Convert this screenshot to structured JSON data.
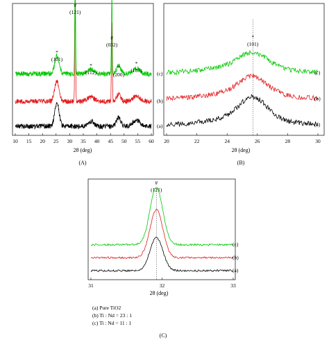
{
  "chart_data": [
    {
      "panel": "(A)",
      "type": "line",
      "xlabel": "2θ (deg)",
      "xlim": [
        10,
        60
      ],
      "xticks": [
        10,
        15,
        20,
        25,
        30,
        35,
        40,
        45,
        50,
        55,
        60
      ],
      "grid": false,
      "series": [
        {
          "label": "(a)",
          "color": "#000000",
          "offset": 0.0
        },
        {
          "label": "(b)",
          "color": "#e41a1c",
          "offset": 1.0
        },
        {
          "label": "(c)",
          "color": "#00c800",
          "offset": 2.1
        }
      ],
      "peaks": [
        {
          "x": 25.3,
          "h": 0.95,
          "w": 0.8,
          "type": "anatase"
        },
        {
          "x": 32.0,
          "h": 4.2,
          "w": 0.15,
          "type": "hash"
        },
        {
          "x": 37.8,
          "h": 0.2,
          "w": 1.2,
          "type": "anatase"
        },
        {
          "x": 45.5,
          "h": 3.2,
          "w": 0.15,
          "type": "hash"
        },
        {
          "x": 48.0,
          "h": 0.35,
          "w": 0.8,
          "type": "anatase"
        },
        {
          "x": 54.5,
          "h": 0.25,
          "w": 1.3,
          "type": "anatase"
        }
      ],
      "annotations": [
        {
          "x": 25.3,
          "symbol": "*",
          "hkl": "(101)"
        },
        {
          "x": 32.0,
          "symbol": "#",
          "hkl": "(121)"
        },
        {
          "x": 37.8,
          "symbol": "*",
          "hkl": "(112)"
        },
        {
          "x": 45.5,
          "symbol": "#",
          "hkl": "(032)"
        },
        {
          "x": 48.0,
          "symbol": "*",
          "hkl": "(200)"
        },
        {
          "x": 54.5,
          "symbol": "*",
          "hkl": "(105)"
        }
      ]
    },
    {
      "panel": "(B)",
      "type": "line",
      "xlabel": "2θ (deg)",
      "xlim": [
        20,
        30
      ],
      "xticks": [
        20,
        22,
        24,
        26,
        28,
        30
      ],
      "grid": false,
      "dashed_line_x": 25.7,
      "series": [
        {
          "label": "(a)",
          "color": "#000000",
          "offset": 0.0
        },
        {
          "label": "(b)",
          "color": "#e41a1c",
          "offset": 1.25
        },
        {
          "label": "(c)",
          "color": "#00c800",
          "offset": 2.5
        }
      ],
      "peaks": [
        {
          "x": 25.7,
          "h": 1.0,
          "w": 0.9
        }
      ],
      "annotations": [
        {
          "x": 25.7,
          "symbol": "*",
          "hkl": "(101)"
        }
      ]
    },
    {
      "panel": "(C)",
      "type": "line",
      "xlabel": "2θ (deg)",
      "xlim": [
        31,
        33
      ],
      "xticks": [
        31,
        32,
        33
      ],
      "grid": false,
      "dashed_line_x": 31.92,
      "series": [
        {
          "label": "(a)",
          "color": "#000000",
          "offset": 0.0
        },
        {
          "label": "(b)",
          "color": "#e41a1c",
          "offset": 0.85
        },
        {
          "label": "(c)",
          "color": "#00c800",
          "offset": 1.7
        }
      ],
      "peaks": [
        {
          "x": 31.92,
          "h": 3.0,
          "w": 0.09
        }
      ],
      "annotations": [
        {
          "x": 31.92,
          "symbol": "#",
          "hkl": "(121)"
        }
      ]
    }
  ],
  "legend": [
    {
      "label": "(a) Pure TiO2"
    },
    {
      "label": "(b) Ti : Nd = 23 : 1"
    },
    {
      "label": "(c) Ti : Nd = 11 : 1"
    }
  ]
}
